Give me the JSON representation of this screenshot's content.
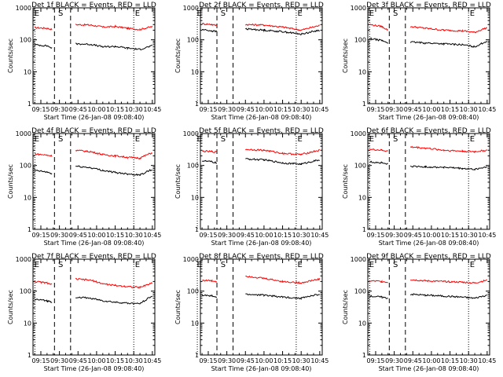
{
  "colors": {
    "events": "#000000",
    "lld": "#ff0000",
    "axis": "#000000",
    "background": "#ffffff"
  },
  "chart_data": [
    {
      "type": "line",
      "title": "Det 1f BLACK = Events, RED = LLD",
      "xlabel": "Start Time (26-Jan-08 09:08:40)",
      "ylabel": "Counts/sec",
      "yscale": "log",
      "ylim": [
        1,
        1000
      ],
      "x_ticks": [
        "09:15",
        "09:30",
        "09:45",
        "10:00",
        "10:15",
        "10:30",
        "10:45"
      ],
      "y_ticks": [
        "1",
        "10",
        "100",
        "1000"
      ],
      "markers": [
        "E",
        "S",
        "E"
      ],
      "series": [
        {
          "key": "lld",
          "x": [
            "09:10",
            "09:20",
            "09:24",
            "09:30",
            "09:40",
            "09:43",
            "09:55",
            "10:05",
            "10:15",
            "10:25",
            "10:35",
            "10:45"
          ],
          "y": [
            240,
            230,
            210,
            null,
            null,
            300,
            290,
            250,
            260,
            230,
            210,
            260
          ]
        },
        {
          "key": "events",
          "x": [
            "09:10",
            "09:20",
            "09:24",
            "09:30",
            "09:40",
            "09:43",
            "09:55",
            "10:05",
            "10:15",
            "10:25",
            "10:35",
            "10:45"
          ],
          "y": [
            70,
            65,
            55,
            null,
            null,
            75,
            72,
            60,
            62,
            55,
            50,
            65
          ]
        }
      ]
    },
    {
      "type": "line",
      "title": "Det 2f BLACK = Events, RED = LLD",
      "xlabel": "Start Time (26-Jan-08 09:08:40)",
      "ylabel": "Counts/sec",
      "yscale": "log",
      "ylim": [
        1,
        1000
      ],
      "x_ticks": [
        "09:15",
        "09:30",
        "09:45",
        "10:00",
        "10:15",
        "10:30",
        "10:45"
      ],
      "y_ticks": [
        "1",
        "10",
        "100",
        "1000"
      ],
      "markers": [
        "E",
        "S",
        "E"
      ],
      "series": [
        {
          "key": "lld",
          "x": [
            "09:10",
            "09:18",
            "09:22",
            "09:27",
            "09:40",
            "09:45",
            "10:00",
            "10:15",
            "10:30",
            "10:45"
          ],
          "y": [
            320,
            300,
            280,
            null,
            null,
            300,
            290,
            250,
            200,
            280
          ]
        },
        {
          "key": "events",
          "x": [
            "09:10",
            "09:18",
            "09:22",
            "09:27",
            "09:40",
            "09:45",
            "10:00",
            "10:15",
            "10:30",
            "10:45"
          ],
          "y": [
            210,
            190,
            180,
            null,
            null,
            220,
            200,
            180,
            150,
            200
          ]
        }
      ]
    },
    {
      "type": "line",
      "title": "Det 3f BLACK = Events, RED = LLD",
      "xlabel": "Start Time (26-Jan-08 09:08:40)",
      "ylabel": "Counts/sec",
      "yscale": "log",
      "ylim": [
        1,
        1000
      ],
      "x_ticks": [
        "09:15",
        "09:30",
        "09:45",
        "10:00",
        "10:15",
        "10:30",
        "10:45"
      ],
      "y_ticks": [
        "1",
        "10",
        "100",
        "1000"
      ],
      "markers": [
        "E",
        "S",
        "E"
      ],
      "series": [
        {
          "key": "lld",
          "x": [
            "09:10",
            "09:20",
            "09:25",
            "09:30",
            "09:40",
            "09:43",
            "09:55",
            "10:10",
            "10:25",
            "10:35",
            "10:45"
          ],
          "y": [
            300,
            260,
            200,
            null,
            null,
            260,
            230,
            200,
            190,
            170,
            240
          ]
        },
        {
          "key": "events",
          "x": [
            "09:10",
            "09:20",
            "09:25",
            "09:30",
            "09:40",
            "09:43",
            "09:55",
            "10:10",
            "10:25",
            "10:35",
            "10:45"
          ],
          "y": [
            110,
            95,
            80,
            null,
            null,
            85,
            80,
            75,
            70,
            60,
            90
          ]
        }
      ]
    },
    {
      "type": "line",
      "title": "Det 4f BLACK = Events, RED = LLD",
      "xlabel": "Start Time (26-Jan-08 09:08:40)",
      "ylabel": "Counts/sec",
      "yscale": "log",
      "ylim": [
        1,
        1000
      ],
      "x_ticks": [
        "09:15",
        "09:30",
        "09:45",
        "10:00",
        "10:15",
        "10:30",
        "10:45"
      ],
      "y_ticks": [
        "1",
        "10",
        "100",
        "1000"
      ],
      "markers": [
        "E",
        "S",
        "E"
      ],
      "series": [
        {
          "key": "lld",
          "x": [
            "09:10",
            "09:20",
            "09:24",
            "09:30",
            "09:40",
            "09:43",
            "09:55",
            "10:05",
            "10:15",
            "10:25",
            "10:35",
            "10:45"
          ],
          "y": [
            230,
            210,
            200,
            null,
            null,
            300,
            270,
            220,
            200,
            180,
            170,
            250
          ]
        },
        {
          "key": "events",
          "x": [
            "09:10",
            "09:20",
            "09:24",
            "09:30",
            "09:40",
            "09:43",
            "09:55",
            "10:05",
            "10:15",
            "10:25",
            "10:35",
            "10:45"
          ],
          "y": [
            70,
            62,
            55,
            null,
            null,
            95,
            85,
            70,
            60,
            55,
            50,
            75
          ]
        }
      ]
    },
    {
      "type": "line",
      "title": "Det 5f BLACK = Events, RED = LLD",
      "xlabel": "Start Time (26-Jan-08 09:08:40)",
      "ylabel": "Counts/sec",
      "yscale": "log",
      "ylim": [
        1,
        1000
      ],
      "x_ticks": [
        "09:15",
        "09:30",
        "09:45",
        "10:00",
        "10:15",
        "10:30",
        "10:45"
      ],
      "y_ticks": [
        "1",
        "10",
        "100",
        "1000"
      ],
      "markers": [
        "E",
        "S",
        "E"
      ],
      "series": [
        {
          "key": "lld",
          "x": [
            "09:10",
            "09:18",
            "09:22",
            "09:27",
            "09:40",
            "09:45",
            "10:00",
            "10:15",
            "10:30",
            "10:45"
          ],
          "y": [
            280,
            270,
            260,
            null,
            null,
            320,
            300,
            240,
            220,
            300
          ]
        },
        {
          "key": "events",
          "x": [
            "09:10",
            "09:18",
            "09:22",
            "09:27",
            "09:40",
            "09:45",
            "10:00",
            "10:15",
            "10:30",
            "10:45"
          ],
          "y": [
            140,
            130,
            120,
            null,
            null,
            160,
            150,
            120,
            110,
            150
          ]
        }
      ]
    },
    {
      "type": "line",
      "title": "Det 6f BLACK = Events, RED = LLD",
      "xlabel": "Start Time (26-Jan-08 09:08:40)",
      "ylabel": "Counts/sec",
      "yscale": "log",
      "ylim": [
        1,
        1000
      ],
      "x_ticks": [
        "09:15",
        "09:30",
        "09:45",
        "10:00",
        "10:15",
        "10:30",
        "10:45"
      ],
      "y_ticks": [
        "1",
        "10",
        "100",
        "1000"
      ],
      "markers": [
        "E",
        "S",
        "E"
      ],
      "series": [
        {
          "key": "lld",
          "x": [
            "09:10",
            "09:20",
            "09:25",
            "09:30",
            "09:40",
            "09:43",
            "09:55",
            "10:10",
            "10:25",
            "10:35",
            "10:45"
          ],
          "y": [
            320,
            300,
            280,
            null,
            null,
            380,
            350,
            300,
            280,
            270,
            300
          ]
        },
        {
          "key": "events",
          "x": [
            "09:10",
            "09:20",
            "09:25",
            "09:30",
            "09:40",
            "09:43",
            "09:55",
            "10:10",
            "10:25",
            "10:35",
            "10:45"
          ],
          "y": [
            130,
            120,
            110,
            null,
            null,
            95,
            90,
            88,
            80,
            75,
            90
          ]
        }
      ]
    },
    {
      "type": "line",
      "title": "Det 7f BLACK = Events, RED = LLD",
      "xlabel": "Start Time (26-Jan-08 09:08:40)",
      "ylabel": "Counts/sec",
      "yscale": "log",
      "ylim": [
        1,
        1000
      ],
      "x_ticks": [
        "09:15",
        "09:30",
        "09:45",
        "10:00",
        "10:15",
        "10:30",
        "10:45"
      ],
      "y_ticks": [
        "1",
        "10",
        "100",
        "1000"
      ],
      "markers": [
        "E",
        "S",
        "E"
      ],
      "series": [
        {
          "key": "lld",
          "x": [
            "09:10",
            "09:20",
            "09:24",
            "09:30",
            "09:40",
            "09:43",
            "09:55",
            "10:05",
            "10:15",
            "10:25",
            "10:35",
            "10:45"
          ],
          "y": [
            200,
            180,
            160,
            null,
            null,
            240,
            220,
            170,
            150,
            140,
            130,
            180
          ]
        },
        {
          "key": "events",
          "x": [
            "09:10",
            "09:20",
            "09:24",
            "09:30",
            "09:40",
            "09:43",
            "09:55",
            "10:05",
            "10:15",
            "10:25",
            "10:35",
            "10:45"
          ],
          "y": [
            55,
            50,
            45,
            null,
            null,
            65,
            60,
            50,
            45,
            42,
            40,
            70
          ]
        }
      ]
    },
    {
      "type": "line",
      "title": "Det 8f BLACK = Events, RED = LLD",
      "xlabel": "Start Time (26-Jan-08 09:08:40)",
      "ylabel": "Counts/sec",
      "yscale": "log",
      "ylim": [
        1,
        1000
      ],
      "x_ticks": [
        "09:15",
        "09:30",
        "09:45",
        "10:00",
        "10:15",
        "10:30",
        "10:45"
      ],
      "y_ticks": [
        "1",
        "10",
        "100",
        "1000"
      ],
      "markers": [
        "E",
        "S",
        "E"
      ],
      "series": [
        {
          "key": "lld",
          "x": [
            "09:10",
            "09:18",
            "09:22",
            "09:27",
            "09:40",
            "09:45",
            "10:00",
            "10:15",
            "10:30",
            "10:45"
          ],
          "y": [
            220,
            210,
            200,
            null,
            null,
            300,
            250,
            200,
            180,
            240
          ]
        },
        {
          "key": "events",
          "x": [
            "09:10",
            "09:18",
            "09:22",
            "09:27",
            "09:40",
            "09:45",
            "10:00",
            "10:15",
            "10:30",
            "10:45"
          ],
          "y": [
            75,
            70,
            65,
            null,
            null,
            80,
            75,
            65,
            60,
            80
          ]
        }
      ]
    },
    {
      "type": "line",
      "title": "Det 9f BLACK = Events, RED = LLD",
      "xlabel": "Start Time (26-Jan-08 09:08:40)",
      "ylabel": "Counts/sec",
      "yscale": "log",
      "ylim": [
        1,
        1000
      ],
      "x_ticks": [
        "09:15",
        "09:30",
        "09:45",
        "10:00",
        "10:15",
        "10:30",
        "10:45"
      ],
      "y_ticks": [
        "1",
        "10",
        "100",
        "1000"
      ],
      "markers": [
        "E",
        "S",
        "E"
      ],
      "series": [
        {
          "key": "lld",
          "x": [
            "09:10",
            "09:20",
            "09:25",
            "09:30",
            "09:40",
            "09:43",
            "09:55",
            "10:10",
            "10:25",
            "10:35",
            "10:45"
          ],
          "y": [
            210,
            200,
            190,
            null,
            null,
            230,
            210,
            200,
            190,
            180,
            220
          ]
        },
        {
          "key": "events",
          "x": [
            "09:10",
            "09:20",
            "09:25",
            "09:30",
            "09:40",
            "09:43",
            "09:55",
            "10:10",
            "10:25",
            "10:35",
            "10:45"
          ],
          "y": [
            70,
            65,
            60,
            null,
            null,
            80,
            75,
            70,
            65,
            60,
            75
          ]
        }
      ]
    }
  ]
}
